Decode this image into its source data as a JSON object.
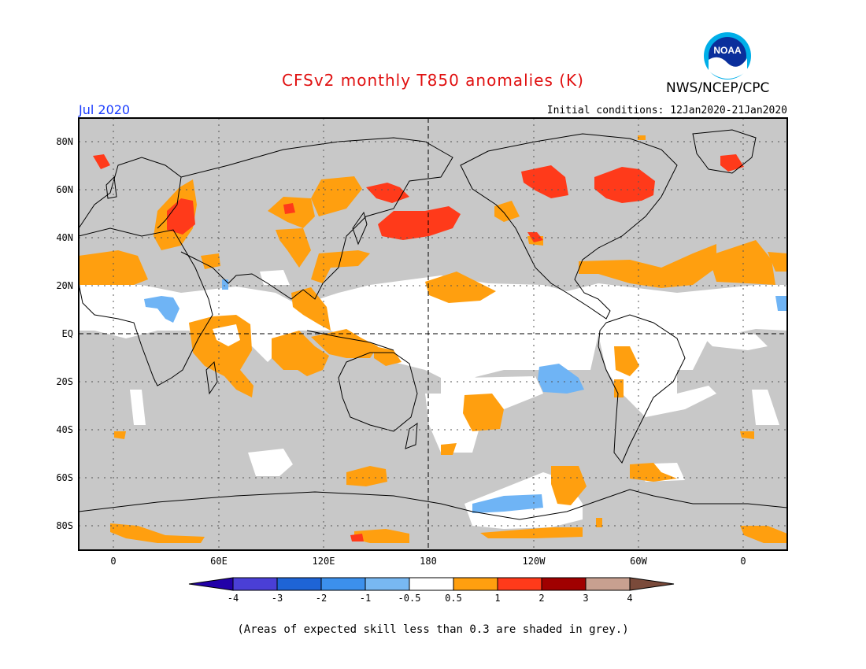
{
  "title": "CFSv2 monthly T850 anomalies (K)",
  "organization": "NWS/NCEP/CPC",
  "logo_text": "NOAA",
  "valid_month": "Jul 2020",
  "initial_conditions": "Initial conditions: 12Jan2020-21Jan2020",
  "footnote": "(Areas of expected skill less than 0.3 are shaded in grey.)",
  "map": {
    "lat_labels": [
      "80N",
      "60N",
      "40N",
      "20N",
      "EQ",
      "20S",
      "40S",
      "60S",
      "80S"
    ],
    "lon_labels": [
      "0",
      "60E",
      "120E",
      "180",
      "120W",
      "60W",
      "0"
    ],
    "colors": {
      "low_skill": "#c8c8c8",
      "neutral": "#ffffff",
      "pos_0_5_1": "#ff9f0f",
      "pos_1_2": "#ff3a1a",
      "neg_0_5_1": "#6fb4f5",
      "neg_1_2": "#4a9ef0"
    }
  },
  "colorbar": {
    "labels": [
      "-4",
      "-3",
      "-2",
      "-1",
      "-0.5",
      "0.5",
      "1",
      "2",
      "3",
      "4"
    ],
    "colors": [
      "#2200a8",
      "#4a3fd6",
      "#1e64d6",
      "#3c90ec",
      "#78b8f2",
      "#ffffff",
      "#ff9f0f",
      "#ff3a1a",
      "#a00000",
      "#c8a090",
      "#7a4a3a"
    ]
  }
}
